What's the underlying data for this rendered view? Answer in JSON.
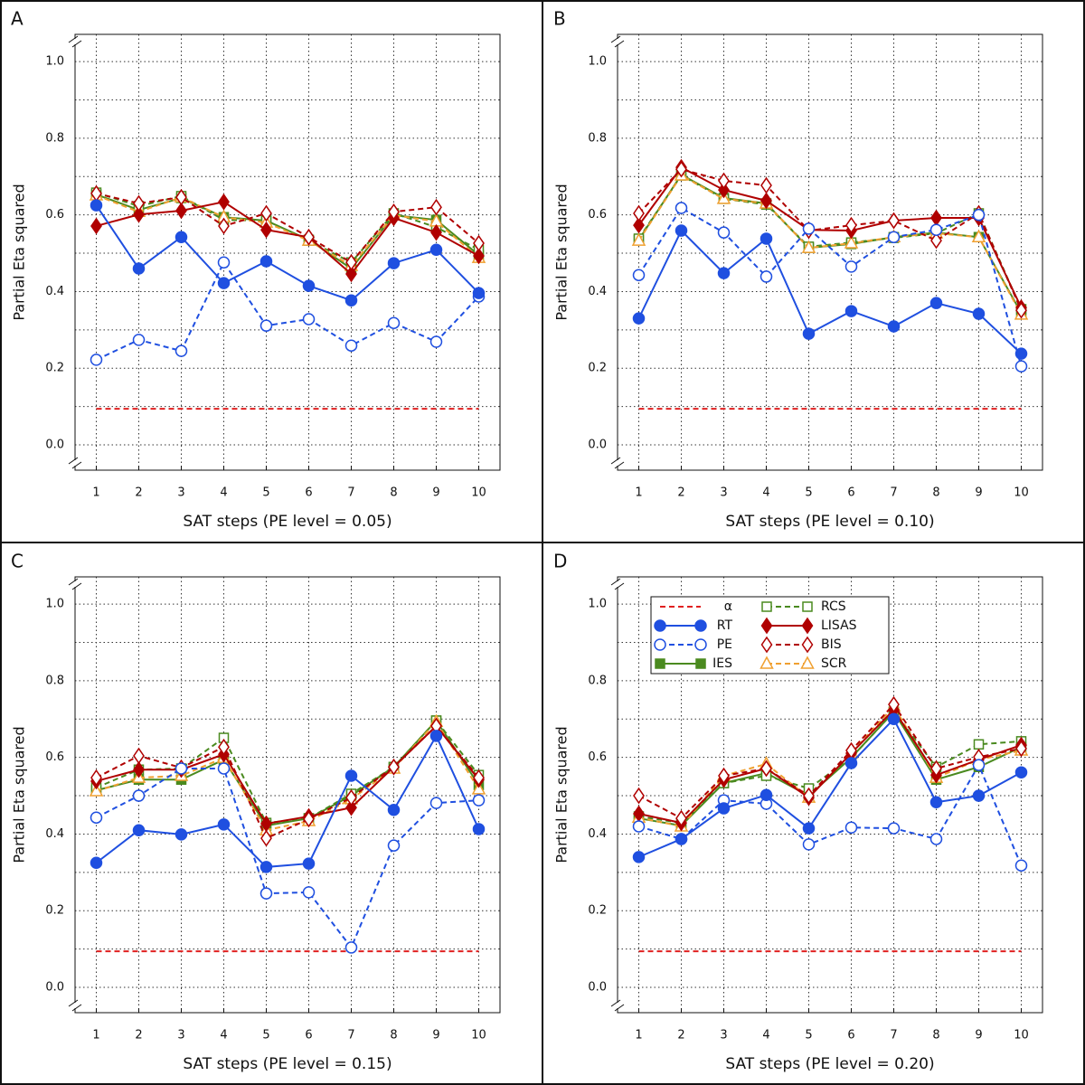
{
  "chart_data": [
    {
      "type": "line",
      "panel": "A",
      "xlabel": "SAT steps (PE level = 0.05)",
      "ylabel": "Partial Eta squared",
      "x": [
        1,
        2,
        3,
        4,
        5,
        6,
        7,
        8,
        9,
        10
      ],
      "xlim": [
        0.5,
        10.5
      ],
      "xticks": [
        1,
        2,
        3,
        4,
        5,
        6,
        7,
        8,
        9,
        10
      ],
      "ylim": [
        -0.066,
        1.071
      ],
      "yticks": [
        {
          "value": 0,
          "label": "0.0"
        },
        {
          "value": 0.2,
          "label": "0.2"
        },
        {
          "value": 0.4,
          "label": "0.4"
        },
        {
          "value": 0.6,
          "label": "0.6"
        },
        {
          "value": 0.8,
          "label": "0.8"
        },
        {
          "value": 1,
          "label": "1.0"
        }
      ],
      "minor_yticks": [
        0.1,
        0.3,
        0.5,
        0.7,
        0.9
      ],
      "grid": true,
      "legend": false,
      "series": [
        {
          "name": "α",
          "color": "#e02020",
          "dashed": true,
          "marker": "none",
          "filled": false,
          "values": [
            0.094,
            0.094,
            0.094,
            0.094,
            0.094,
            0.094,
            0.094,
            0.094,
            0.094,
            0.094
          ]
        },
        {
          "name": "IES",
          "color": "#4a8a1f",
          "dashed": false,
          "marker": "square",
          "filled": true,
          "values": [
            0.653,
            0.613,
            0.644,
            0.594,
            0.585,
            0.535,
            0.46,
            0.599,
            0.587,
            0.495
          ]
        },
        {
          "name": "RCS",
          "color": "#4a8a1f",
          "dashed": true,
          "marker": "square",
          "filled": false,
          "values": [
            0.658,
            0.623,
            0.649,
            0.587,
            0.585,
            0.533,
            0.476,
            0.604,
            0.568,
            0.509
          ]
        },
        {
          "name": "SCR",
          "color": "#f0a030",
          "dashed": true,
          "marker": "triangle",
          "filled": false,
          "values": [
            0.651,
            0.608,
            0.646,
            0.594,
            0.58,
            0.533,
            0.467,
            0.599,
            0.583,
            0.488
          ]
        },
        {
          "name": "LISAS",
          "color": "#b00000",
          "dashed": false,
          "marker": "diamond",
          "filled": true,
          "values": [
            0.571,
            0.601,
            0.611,
            0.634,
            0.561,
            0.542,
            0.446,
            0.592,
            0.554,
            0.493
          ]
        },
        {
          "name": "BIS",
          "color": "#b00000",
          "dashed": true,
          "marker": "diamond",
          "filled": false,
          "values": [
            0.656,
            0.63,
            0.646,
            0.571,
            0.604,
            0.542,
            0.476,
            0.608,
            0.62,
            0.526
          ]
        },
        {
          "name": "PE",
          "color": "#1f4fe0",
          "dashed": true,
          "marker": "circle",
          "filled": false,
          "values": [
            0.222,
            0.274,
            0.245,
            0.476,
            0.311,
            0.328,
            0.259,
            0.318,
            0.269,
            0.387
          ]
        },
        {
          "name": "RT",
          "color": "#1f4fe0",
          "dashed": false,
          "marker": "circle",
          "filled": true,
          "values": [
            0.625,
            0.46,
            0.542,
            0.422,
            0.479,
            0.415,
            0.377,
            0.474,
            0.509,
            0.396
          ]
        }
      ]
    },
    {
      "type": "line",
      "panel": "B",
      "xlabel": "SAT steps (PE level = 0.10)",
      "ylabel": "Partial Eta squared",
      "x": [
        1,
        2,
        3,
        4,
        5,
        6,
        7,
        8,
        9,
        10
      ],
      "xlim": [
        0.5,
        10.5
      ],
      "xticks": [
        1,
        2,
        3,
        4,
        5,
        6,
        7,
        8,
        9,
        10
      ],
      "ylim": [
        -0.066,
        1.071
      ],
      "yticks": [
        {
          "value": 0,
          "label": "0.0"
        },
        {
          "value": 0.2,
          "label": "0.2"
        },
        {
          "value": 0.4,
          "label": "0.4"
        },
        {
          "value": 0.6,
          "label": "0.6"
        },
        {
          "value": 0.8,
          "label": "0.8"
        },
        {
          "value": 1,
          "label": "1.0"
        }
      ],
      "minor_yticks": [
        0.1,
        0.3,
        0.5,
        0.7,
        0.9
      ],
      "grid": true,
      "legend": false,
      "series": [
        {
          "name": "α",
          "color": "#e02020",
          "dashed": true,
          "marker": "none",
          "filled": false,
          "values": [
            0.094,
            0.094,
            0.094,
            0.094,
            0.094,
            0.094,
            0.094,
            0.094,
            0.094,
            0.094
          ]
        },
        {
          "name": "IES",
          "color": "#4a8a1f",
          "dashed": false,
          "marker": "square",
          "filled": true,
          "values": [
            0.535,
            0.705,
            0.644,
            0.63,
            0.514,
            0.524,
            0.542,
            0.554,
            0.542,
            0.344
          ]
        },
        {
          "name": "RCS",
          "color": "#4a8a1f",
          "dashed": true,
          "marker": "square",
          "filled": false,
          "values": [
            0.538,
            0.703,
            0.642,
            0.627,
            0.517,
            0.528,
            0.54,
            0.552,
            0.604,
            0.354
          ]
        },
        {
          "name": "SCR",
          "color": "#f0a030",
          "dashed": true,
          "marker": "triangle",
          "filled": false,
          "values": [
            0.533,
            0.703,
            0.642,
            0.63,
            0.514,
            0.526,
            0.542,
            0.552,
            0.542,
            0.34
          ]
        },
        {
          "name": "LISAS",
          "color": "#b00000",
          "dashed": false,
          "marker": "diamond",
          "filled": true,
          "values": [
            0.573,
            0.724,
            0.665,
            0.637,
            0.561,
            0.559,
            0.585,
            0.592,
            0.592,
            0.358
          ]
        },
        {
          "name": "BIS",
          "color": "#b00000",
          "dashed": true,
          "marker": "diamond",
          "filled": false,
          "values": [
            0.604,
            0.719,
            0.689,
            0.677,
            0.559,
            0.573,
            0.585,
            0.533,
            0.604,
            0.351
          ]
        },
        {
          "name": "PE",
          "color": "#1f4fe0",
          "dashed": true,
          "marker": "circle",
          "filled": false,
          "values": [
            0.443,
            0.618,
            0.554,
            0.439,
            0.564,
            0.465,
            0.542,
            0.561,
            0.6,
            0.205
          ]
        },
        {
          "name": "RT",
          "color": "#1f4fe0",
          "dashed": false,
          "marker": "circle",
          "filled": true,
          "values": [
            0.33,
            0.559,
            0.448,
            0.538,
            0.29,
            0.349,
            0.309,
            0.37,
            0.342,
            0.238
          ]
        }
      ]
    },
    {
      "type": "line",
      "panel": "C",
      "xlabel": "SAT steps (PE level = 0.15)",
      "ylabel": "Partial Eta squared",
      "x": [
        1,
        2,
        3,
        4,
        5,
        6,
        7,
        8,
        9,
        10
      ],
      "xlim": [
        0.5,
        10.5
      ],
      "xticks": [
        1,
        2,
        3,
        4,
        5,
        6,
        7,
        8,
        9,
        10
      ],
      "ylim": [
        -0.066,
        1.071
      ],
      "yticks": [
        {
          "value": 0,
          "label": "0.0"
        },
        {
          "value": 0.2,
          "label": "0.2"
        },
        {
          "value": 0.4,
          "label": "0.4"
        },
        {
          "value": 0.6,
          "label": "0.6"
        },
        {
          "value": 0.8,
          "label": "0.8"
        },
        {
          "value": 1,
          "label": "1.0"
        }
      ],
      "minor_yticks": [
        0.1,
        0.3,
        0.5,
        0.7,
        0.9
      ],
      "grid": true,
      "legend": false,
      "series": [
        {
          "name": "α",
          "color": "#e02020",
          "dashed": true,
          "marker": "none",
          "filled": false,
          "values": [
            0.094,
            0.094,
            0.094,
            0.094,
            0.094,
            0.094,
            0.094,
            0.094,
            0.094,
            0.094
          ]
        },
        {
          "name": "IES",
          "color": "#4a8a1f",
          "dashed": false,
          "marker": "square",
          "filled": true,
          "values": [
            0.514,
            0.542,
            0.542,
            0.594,
            0.422,
            0.441,
            0.5,
            0.575,
            0.696,
            0.528
          ]
        },
        {
          "name": "RCS",
          "color": "#4a8a1f",
          "dashed": true,
          "marker": "square",
          "filled": false,
          "values": [
            0.521,
            0.568,
            0.571,
            0.651,
            0.429,
            0.441,
            0.505,
            0.575,
            0.696,
            0.554
          ]
        },
        {
          "name": "SCR",
          "color": "#f0a030",
          "dashed": true,
          "marker": "triangle",
          "filled": false,
          "values": [
            0.512,
            0.547,
            0.552,
            0.599,
            0.41,
            0.434,
            0.491,
            0.571,
            0.693,
            0.517
          ]
        },
        {
          "name": "LISAS",
          "color": "#b00000",
          "dashed": false,
          "marker": "diamond",
          "filled": true,
          "values": [
            0.538,
            0.568,
            0.568,
            0.608,
            0.427,
            0.446,
            0.469,
            0.575,
            0.682,
            0.542
          ]
        },
        {
          "name": "BIS",
          "color": "#b00000",
          "dashed": true,
          "marker": "diamond",
          "filled": false,
          "values": [
            0.547,
            0.604,
            0.573,
            0.627,
            0.389,
            0.439,
            0.495,
            0.575,
            0.682,
            0.547
          ]
        },
        {
          "name": "PE",
          "color": "#1f4fe0",
          "dashed": true,
          "marker": "circle",
          "filled": false,
          "values": [
            0.443,
            0.5,
            0.571,
            0.571,
            0.245,
            0.248,
            0.104,
            0.37,
            0.481,
            0.488
          ]
        },
        {
          "name": "RT",
          "color": "#1f4fe0",
          "dashed": false,
          "marker": "circle",
          "filled": true,
          "values": [
            0.325,
            0.41,
            0.399,
            0.425,
            0.314,
            0.323,
            0.552,
            0.463,
            0.656,
            0.413
          ]
        }
      ]
    },
    {
      "type": "line",
      "panel": "D",
      "xlabel": "SAT steps (PE level = 0.20)",
      "ylabel": "Partial Eta squared",
      "x": [
        1,
        2,
        3,
        4,
        5,
        6,
        7,
        8,
        9,
        10
      ],
      "xlim": [
        0.5,
        10.5
      ],
      "xticks": [
        1,
        2,
        3,
        4,
        5,
        6,
        7,
        8,
        9,
        10
      ],
      "ylim": [
        -0.066,
        1.071
      ],
      "yticks": [
        {
          "value": 0,
          "label": "0.0"
        },
        {
          "value": 0.2,
          "label": "0.2"
        },
        {
          "value": 0.4,
          "label": "0.4"
        },
        {
          "value": 0.6,
          "label": "0.6"
        },
        {
          "value": 0.8,
          "label": "0.8"
        },
        {
          "value": 1,
          "label": "1.0"
        }
      ],
      "minor_yticks": [
        0.1,
        0.3,
        0.5,
        0.7,
        0.9
      ],
      "grid": true,
      "legend": true,
      "series": [
        {
          "name": "α",
          "color": "#e02020",
          "dashed": true,
          "marker": "none",
          "filled": false,
          "values": [
            0.094,
            0.094,
            0.094,
            0.094,
            0.094,
            0.094,
            0.094,
            0.094,
            0.094,
            0.094
          ]
        },
        {
          "name": "IES",
          "color": "#4a8a1f",
          "dashed": false,
          "marker": "square",
          "filled": true,
          "values": [
            0.441,
            0.422,
            0.533,
            0.559,
            0.5,
            0.599,
            0.719,
            0.542,
            0.575,
            0.627
          ]
        },
        {
          "name": "RCS",
          "color": "#4a8a1f",
          "dashed": true,
          "marker": "square",
          "filled": false,
          "values": [
            0.446,
            0.429,
            0.533,
            0.552,
            0.519,
            0.599,
            0.719,
            0.575,
            0.634,
            0.642
          ]
        },
        {
          "name": "SCR",
          "color": "#f0a030",
          "dashed": true,
          "marker": "triangle",
          "filled": false,
          "values": [
            0.443,
            0.42,
            0.552,
            0.583,
            0.495,
            0.611,
            0.733,
            0.547,
            0.594,
            0.618
          ]
        },
        {
          "name": "LISAS",
          "color": "#b00000",
          "dashed": false,
          "marker": "diamond",
          "filled": true,
          "values": [
            0.453,
            0.429,
            0.542,
            0.571,
            0.495,
            0.611,
            0.724,
            0.554,
            0.594,
            0.632
          ]
        },
        {
          "name": "BIS",
          "color": "#b00000",
          "dashed": true,
          "marker": "diamond",
          "filled": false,
          "values": [
            0.5,
            0.441,
            0.552,
            0.571,
            0.5,
            0.618,
            0.738,
            0.571,
            0.601,
            0.623
          ]
        },
        {
          "name": "PE",
          "color": "#1f4fe0",
          "dashed": true,
          "marker": "circle",
          "filled": false,
          "values": [
            0.42,
            0.387,
            0.488,
            0.479,
            0.373,
            0.417,
            0.415,
            0.387,
            0.58,
            0.318
          ]
        },
        {
          "name": "RT",
          "color": "#1f4fe0",
          "dashed": false,
          "marker": "circle",
          "filled": true,
          "values": [
            0.34,
            0.387,
            0.467,
            0.502,
            0.415,
            0.585,
            0.7,
            0.483,
            0.5,
            0.561
          ]
        }
      ]
    }
  ]
}
